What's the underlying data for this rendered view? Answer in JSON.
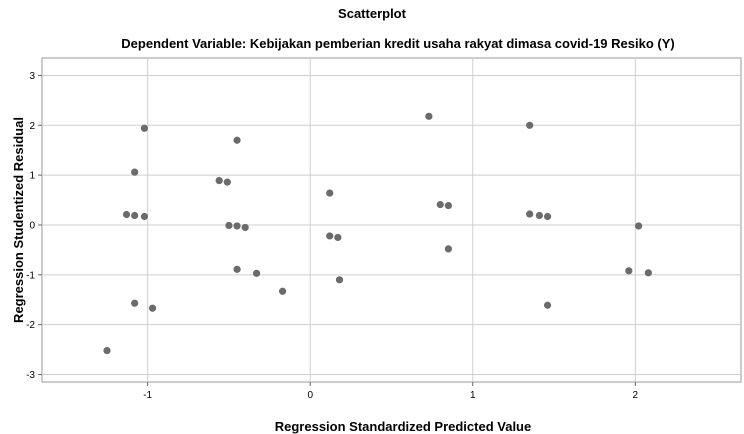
{
  "chart_data": {
    "type": "scatter",
    "title": "Scatterplot",
    "subtitle": "Dependent Variable: Kebijakan pemberian kredit usaha rakyat dimasa covid-19 Resiko (Y)",
    "xlabel": "Regression Standardized Predicted Value",
    "ylabel": "Regression Studentized Residual",
    "xlim": [
      -1.65,
      2.65
    ],
    "ylim": [
      -3.15,
      3.35
    ],
    "xticks": [
      -1,
      0,
      1,
      2
    ],
    "yticks": [
      3,
      2,
      1,
      0,
      -1,
      -2,
      -3
    ],
    "xtick_labels": [
      "-1",
      "0",
      "1",
      "2"
    ],
    "ytick_labels": [
      "3",
      "2",
      "1",
      "0",
      "-1",
      "-2",
      "-3"
    ],
    "grid": true,
    "point_color": "#6b6b6b",
    "points": [
      {
        "x": -1.25,
        "y": -2.52
      },
      {
        "x": -1.13,
        "y": 0.21
      },
      {
        "x": -1.08,
        "y": 1.06
      },
      {
        "x": -1.08,
        "y": 0.19
      },
      {
        "x": -1.08,
        "y": -1.57
      },
      {
        "x": -1.02,
        "y": 1.94
      },
      {
        "x": -1.02,
        "y": 0.17
      },
      {
        "x": -0.97,
        "y": -1.67
      },
      {
        "x": -0.56,
        "y": 0.89
      },
      {
        "x": -0.51,
        "y": 0.86
      },
      {
        "x": -0.5,
        "y": -0.01
      },
      {
        "x": -0.45,
        "y": 1.7
      },
      {
        "x": -0.45,
        "y": -0.02
      },
      {
        "x": -0.45,
        "y": -0.89
      },
      {
        "x": -0.4,
        "y": -0.05
      },
      {
        "x": -0.33,
        "y": -0.97
      },
      {
        "x": -0.17,
        "y": -1.33
      },
      {
        "x": 0.12,
        "y": 0.64
      },
      {
        "x": 0.12,
        "y": -0.22
      },
      {
        "x": 0.17,
        "y": -0.25
      },
      {
        "x": 0.18,
        "y": -1.1
      },
      {
        "x": 0.73,
        "y": 2.18
      },
      {
        "x": 0.8,
        "y": 0.41
      },
      {
        "x": 0.85,
        "y": 0.39
      },
      {
        "x": 0.85,
        "y": -0.48
      },
      {
        "x": 1.35,
        "y": 2.0
      },
      {
        "x": 1.35,
        "y": 0.22
      },
      {
        "x": 1.41,
        "y": 0.19
      },
      {
        "x": 1.46,
        "y": 0.17
      },
      {
        "x": 1.46,
        "y": -1.61
      },
      {
        "x": 1.96,
        "y": -0.92
      },
      {
        "x": 2.02,
        "y": -0.02
      },
      {
        "x": 2.08,
        "y": -0.96
      }
    ]
  }
}
